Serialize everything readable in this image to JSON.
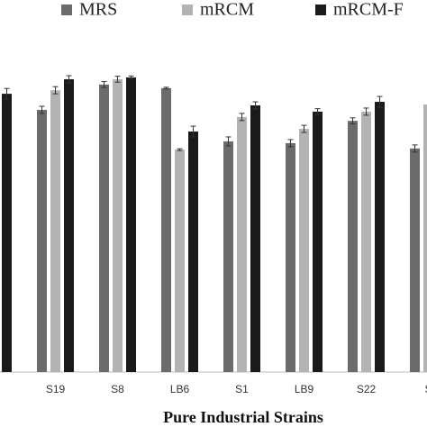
{
  "chart_data": {
    "type": "bar",
    "x_label": "Pure Industrial Strains",
    "categories": [
      null,
      "S19",
      "S8",
      "LB6",
      "S1",
      "LB9",
      "S22",
      "S"
    ],
    "series": [
      {
        "name": "MRS",
        "color": "#6b6b6b",
        "values": [
          null,
          88.2,
          96.7,
          95.5,
          77.6,
          77,
          84.5,
          75.2
        ],
        "errors": [
          null,
          1.2,
          1,
          0.3,
          1.5,
          1.2,
          1,
          1.2
        ]
      },
      {
        "name": "mRCM",
        "color": "#b3b3b3",
        "values": [
          null,
          94.8,
          98.5,
          74.8,
          85.8,
          81.8,
          87.6,
          90
        ],
        "errors": [
          null,
          1.2,
          1,
          0.3,
          1.2,
          1.2,
          1.2,
          null
        ]
      },
      {
        "name": "mRCM-F",
        "color": "#1a1a1a",
        "values": [
          93.6,
          98.5,
          99.1,
          80.9,
          89.7,
          87.6,
          90.9,
          null
        ],
        "errors": [
          1.8,
          1.2,
          0.5,
          1.8,
          1.2,
          1,
          1.8,
          null
        ]
      }
    ],
    "ylim": [
      0,
      100
    ]
  }
}
